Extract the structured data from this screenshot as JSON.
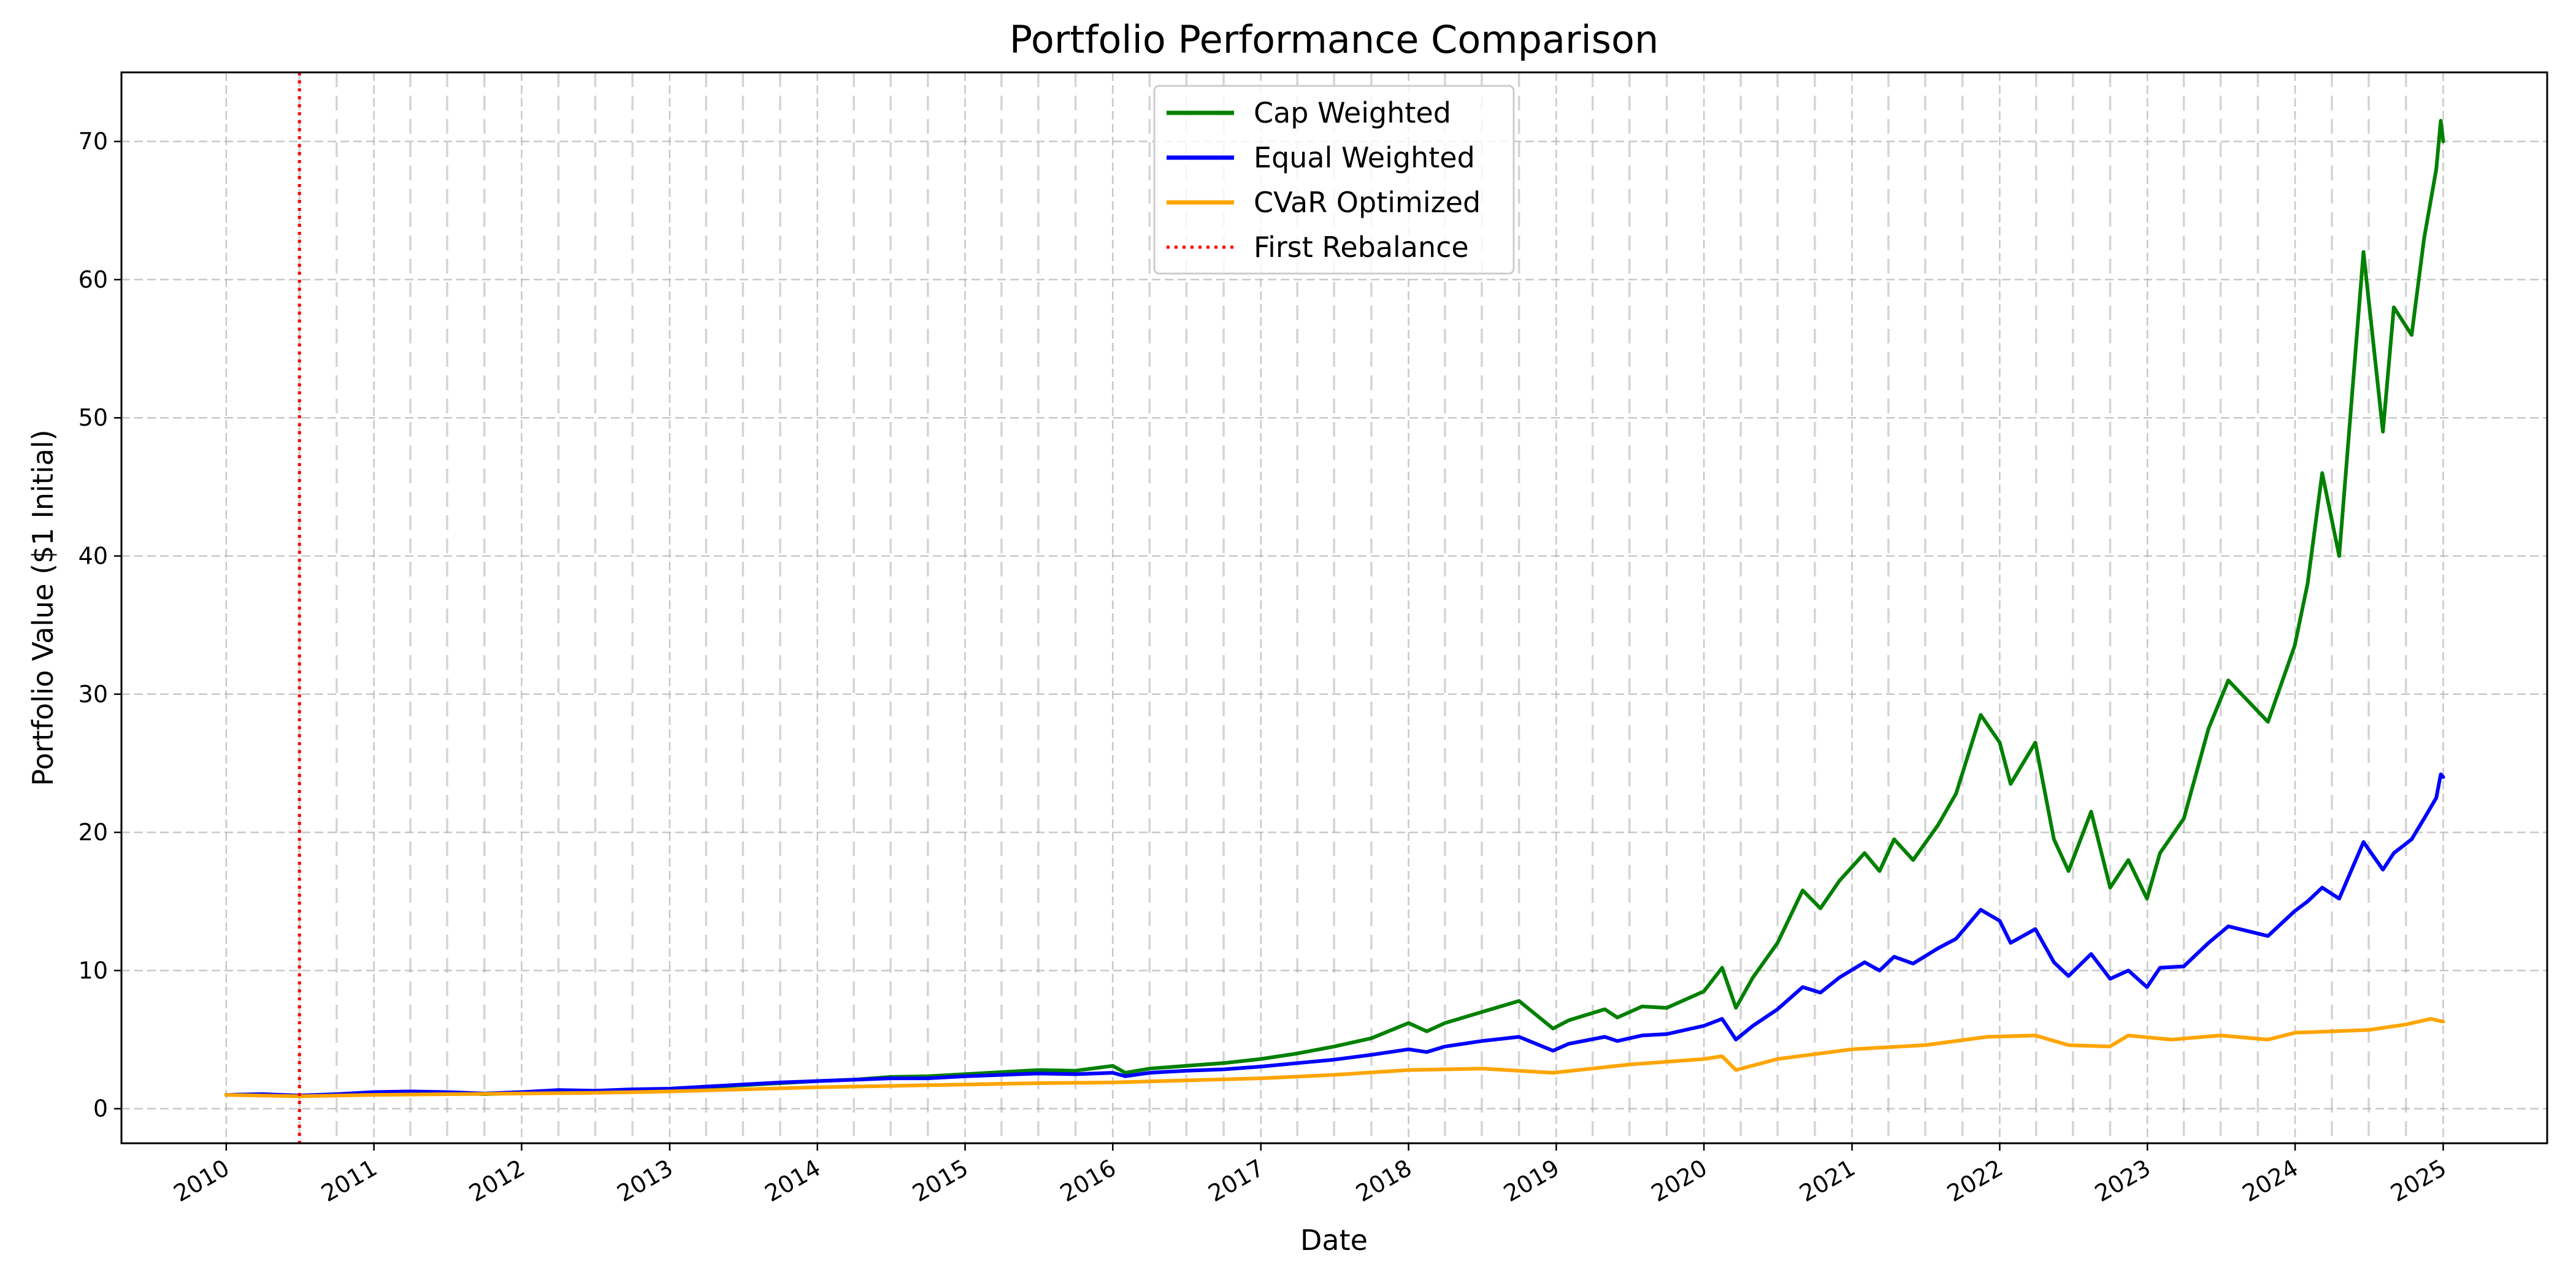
{
  "chart_data": {
    "type": "line",
    "title": "Portfolio Performance Comparison",
    "xlabel": "Date",
    "ylabel": "Portfolio Value ($1 Initial)",
    "x_axis_type": "date",
    "xlim": [
      "2009-04-17",
      "2025-09-15"
    ],
    "ylim": [
      -2.5,
      75
    ],
    "xticks": [
      {
        "date": "2010-01-01",
        "label": "2010"
      },
      {
        "date": "2011-01-01",
        "label": "2011"
      },
      {
        "date": "2012-01-01",
        "label": "2012"
      },
      {
        "date": "2013-01-01",
        "label": "2013"
      },
      {
        "date": "2014-01-01",
        "label": "2014"
      },
      {
        "date": "2015-01-01",
        "label": "2015"
      },
      {
        "date": "2016-01-01",
        "label": "2016"
      },
      {
        "date": "2017-01-01",
        "label": "2017"
      },
      {
        "date": "2018-01-01",
        "label": "2018"
      },
      {
        "date": "2019-01-01",
        "label": "2019"
      },
      {
        "date": "2020-01-01",
        "label": "2020"
      },
      {
        "date": "2021-01-01",
        "label": "2021"
      },
      {
        "date": "2022-01-01",
        "label": "2022"
      },
      {
        "date": "2023-01-01",
        "label": "2023"
      },
      {
        "date": "2024-01-01",
        "label": "2024"
      },
      {
        "date": "2025-01-01",
        "label": "2025"
      }
    ],
    "yticks": [
      0,
      10,
      20,
      30,
      40,
      50,
      60,
      70
    ],
    "grid": true,
    "legend_position": "top-center",
    "rebalance_dates": [
      "2010-07-01",
      "2010-10-01",
      "2011-04-01",
      "2011-07-01",
      "2011-10-01",
      "2012-04-01",
      "2012-07-01",
      "2012-10-01",
      "2013-04-01",
      "2013-07-01",
      "2013-10-01",
      "2014-04-01",
      "2014-07-01",
      "2014-10-01",
      "2015-04-01",
      "2015-07-01",
      "2015-10-01",
      "2016-04-01",
      "2016-07-01",
      "2016-10-01",
      "2017-04-01",
      "2017-07-01",
      "2017-10-01",
      "2018-04-01",
      "2018-07-01",
      "2018-10-01",
      "2019-04-01",
      "2019-07-01",
      "2019-10-01",
      "2020-04-01",
      "2020-07-01",
      "2020-10-01",
      "2021-04-01",
      "2021-07-01",
      "2021-10-01",
      "2022-04-01",
      "2022-07-01",
      "2022-10-01",
      "2023-04-01",
      "2023-07-01",
      "2023-10-01",
      "2024-04-01",
      "2024-07-01",
      "2024-10-01"
    ],
    "first_rebalance": {
      "name": "First Rebalance",
      "date": "2010-07-01",
      "color": "#ff0000"
    },
    "series": [
      {
        "name": "Cap Weighted",
        "color": "#008000",
        "points": [
          [
            "2010-01-01",
            1.0
          ],
          [
            "2010-04-01",
            1.05
          ],
          [
            "2010-07-01",
            0.9
          ],
          [
            "2010-10-01",
            1.0
          ],
          [
            "2011-01-01",
            1.15
          ],
          [
            "2011-04-01",
            1.2
          ],
          [
            "2011-07-01",
            1.15
          ],
          [
            "2011-10-01",
            1.05
          ],
          [
            "2012-01-01",
            1.15
          ],
          [
            "2012-04-01",
            1.3
          ],
          [
            "2012-07-01",
            1.25
          ],
          [
            "2012-10-01",
            1.35
          ],
          [
            "2013-01-01",
            1.4
          ],
          [
            "2013-04-01",
            1.55
          ],
          [
            "2013-07-01",
            1.7
          ],
          [
            "2013-10-01",
            1.85
          ],
          [
            "2014-01-01",
            2.0
          ],
          [
            "2014-04-01",
            2.1
          ],
          [
            "2014-07-01",
            2.3
          ],
          [
            "2014-10-01",
            2.35
          ],
          [
            "2015-01-01",
            2.5
          ],
          [
            "2015-04-01",
            2.65
          ],
          [
            "2015-07-01",
            2.8
          ],
          [
            "2015-10-01",
            2.75
          ],
          [
            "2016-01-01",
            3.1
          ],
          [
            "2016-02-01",
            2.6
          ],
          [
            "2016-04-01",
            2.9
          ],
          [
            "2016-07-01",
            3.1
          ],
          [
            "2016-10-01",
            3.3
          ],
          [
            "2017-01-01",
            3.6
          ],
          [
            "2017-04-01",
            4.0
          ],
          [
            "2017-07-01",
            4.5
          ],
          [
            "2017-10-01",
            5.1
          ],
          [
            "2018-01-01",
            6.2
          ],
          [
            "2018-02-15",
            5.6
          ],
          [
            "2018-04-01",
            6.2
          ],
          [
            "2018-07-01",
            7.0
          ],
          [
            "2018-10-01",
            7.8
          ],
          [
            "2018-12-24",
            5.8
          ],
          [
            "2019-02-01",
            6.4
          ],
          [
            "2019-05-01",
            7.2
          ],
          [
            "2019-06-01",
            6.6
          ],
          [
            "2019-08-01",
            7.4
          ],
          [
            "2019-10-01",
            7.3
          ],
          [
            "2020-01-01",
            8.5
          ],
          [
            "2020-02-15",
            10.2
          ],
          [
            "2020-03-20",
            7.3
          ],
          [
            "2020-05-01",
            9.5
          ],
          [
            "2020-07-01",
            12.0
          ],
          [
            "2020-09-01",
            15.8
          ],
          [
            "2020-10-15",
            14.5
          ],
          [
            "2020-12-01",
            16.5
          ],
          [
            "2021-02-01",
            18.5
          ],
          [
            "2021-03-10",
            17.2
          ],
          [
            "2021-04-15",
            19.5
          ],
          [
            "2021-06-01",
            18.0
          ],
          [
            "2021-08-01",
            20.5
          ],
          [
            "2021-09-15",
            22.8
          ],
          [
            "2021-11-15",
            28.5
          ],
          [
            "2022-01-01",
            26.5
          ],
          [
            "2022-01-28",
            23.5
          ],
          [
            "2022-03-30",
            26.5
          ],
          [
            "2022-05-15",
            19.5
          ],
          [
            "2022-06-20",
            17.2
          ],
          [
            "2022-08-15",
            21.5
          ],
          [
            "2022-10-01",
            16.0
          ],
          [
            "2022-11-15",
            18.0
          ],
          [
            "2022-12-31",
            15.2
          ],
          [
            "2023-02-01",
            18.5
          ],
          [
            "2023-04-01",
            21.0
          ],
          [
            "2023-06-01",
            27.5
          ],
          [
            "2023-07-20",
            31.0
          ],
          [
            "2023-10-26",
            28.0
          ],
          [
            "2023-12-31",
            33.5
          ],
          [
            "2024-02-01",
            38.0
          ],
          [
            "2024-03-08",
            46.0
          ],
          [
            "2024-04-19",
            40.0
          ],
          [
            "2024-06-18",
            62.0
          ],
          [
            "2024-08-05",
            49.0
          ],
          [
            "2024-09-01",
            58.0
          ],
          [
            "2024-10-15",
            56.0
          ],
          [
            "2024-11-15",
            63.0
          ],
          [
            "2024-12-15",
            68.0
          ],
          [
            "2024-12-26",
            71.5
          ],
          [
            "2025-01-01",
            70.0
          ]
        ]
      },
      {
        "name": "Equal Weighted",
        "color": "#0000ff",
        "points": [
          [
            "2010-01-01",
            1.0
          ],
          [
            "2010-04-01",
            1.05
          ],
          [
            "2010-07-01",
            0.95
          ],
          [
            "2010-10-01",
            1.05
          ],
          [
            "2011-01-01",
            1.2
          ],
          [
            "2011-04-01",
            1.25
          ],
          [
            "2011-07-01",
            1.2
          ],
          [
            "2011-10-01",
            1.1
          ],
          [
            "2012-01-01",
            1.2
          ],
          [
            "2012-04-01",
            1.35
          ],
          [
            "2012-07-01",
            1.3
          ],
          [
            "2012-10-01",
            1.4
          ],
          [
            "2013-01-01",
            1.45
          ],
          [
            "2013-04-01",
            1.6
          ],
          [
            "2013-07-01",
            1.75
          ],
          [
            "2013-10-01",
            1.9
          ],
          [
            "2014-01-01",
            2.0
          ],
          [
            "2014-04-01",
            2.1
          ],
          [
            "2014-07-01",
            2.2
          ],
          [
            "2014-10-01",
            2.2
          ],
          [
            "2015-01-01",
            2.35
          ],
          [
            "2015-04-01",
            2.45
          ],
          [
            "2015-07-01",
            2.55
          ],
          [
            "2015-10-01",
            2.5
          ],
          [
            "2016-01-01",
            2.6
          ],
          [
            "2016-02-01",
            2.35
          ],
          [
            "2016-04-01",
            2.6
          ],
          [
            "2016-07-01",
            2.75
          ],
          [
            "2016-10-01",
            2.85
          ],
          [
            "2017-01-01",
            3.05
          ],
          [
            "2017-04-01",
            3.3
          ],
          [
            "2017-07-01",
            3.55
          ],
          [
            "2017-10-01",
            3.9
          ],
          [
            "2018-01-01",
            4.3
          ],
          [
            "2018-02-15",
            4.1
          ],
          [
            "2018-04-01",
            4.5
          ],
          [
            "2018-07-01",
            4.9
          ],
          [
            "2018-10-01",
            5.2
          ],
          [
            "2018-12-24",
            4.2
          ],
          [
            "2019-02-01",
            4.7
          ],
          [
            "2019-05-01",
            5.2
          ],
          [
            "2019-06-01",
            4.9
          ],
          [
            "2019-08-01",
            5.3
          ],
          [
            "2019-10-01",
            5.4
          ],
          [
            "2020-01-01",
            6.0
          ],
          [
            "2020-02-15",
            6.5
          ],
          [
            "2020-03-20",
            5.0
          ],
          [
            "2020-05-01",
            6.0
          ],
          [
            "2020-07-01",
            7.2
          ],
          [
            "2020-09-01",
            8.8
          ],
          [
            "2020-10-15",
            8.4
          ],
          [
            "2020-12-01",
            9.5
          ],
          [
            "2021-02-01",
            10.6
          ],
          [
            "2021-03-10",
            10.0
          ],
          [
            "2021-04-15",
            11.0
          ],
          [
            "2021-06-01",
            10.5
          ],
          [
            "2021-08-01",
            11.6
          ],
          [
            "2021-09-15",
            12.3
          ],
          [
            "2021-11-15",
            14.4
          ],
          [
            "2022-01-01",
            13.6
          ],
          [
            "2022-01-28",
            12.0
          ],
          [
            "2022-03-30",
            13.0
          ],
          [
            "2022-05-15",
            10.6
          ],
          [
            "2022-06-20",
            9.6
          ],
          [
            "2022-08-15",
            11.2
          ],
          [
            "2022-10-01",
            9.4
          ],
          [
            "2022-11-15",
            10.0
          ],
          [
            "2022-12-31",
            8.8
          ],
          [
            "2023-02-01",
            10.2
          ],
          [
            "2023-04-01",
            10.3
          ],
          [
            "2023-06-01",
            12.0
          ],
          [
            "2023-07-20",
            13.2
          ],
          [
            "2023-10-26",
            12.5
          ],
          [
            "2023-12-31",
            14.3
          ],
          [
            "2024-02-01",
            15.0
          ],
          [
            "2024-03-08",
            16.0
          ],
          [
            "2024-04-19",
            15.2
          ],
          [
            "2024-06-18",
            19.3
          ],
          [
            "2024-08-05",
            17.3
          ],
          [
            "2024-09-01",
            18.5
          ],
          [
            "2024-10-15",
            19.5
          ],
          [
            "2024-11-15",
            21.0
          ],
          [
            "2024-12-15",
            22.5
          ],
          [
            "2024-12-26",
            24.2
          ],
          [
            "2025-01-01",
            24.0
          ]
        ]
      },
      {
        "name": "CVaR Optimized",
        "color": "#ffa500",
        "points": [
          [
            "2010-01-01",
            1.0
          ],
          [
            "2010-07-01",
            0.9
          ],
          [
            "2011-01-01",
            1.0
          ],
          [
            "2011-07-01",
            1.05
          ],
          [
            "2012-01-01",
            1.1
          ],
          [
            "2012-07-01",
            1.15
          ],
          [
            "2013-01-01",
            1.25
          ],
          [
            "2013-07-01",
            1.4
          ],
          [
            "2014-01-01",
            1.55
          ],
          [
            "2014-07-01",
            1.65
          ],
          [
            "2015-01-01",
            1.75
          ],
          [
            "2015-07-01",
            1.85
          ],
          [
            "2016-01-01",
            1.9
          ],
          [
            "2016-07-01",
            2.05
          ],
          [
            "2017-01-01",
            2.2
          ],
          [
            "2017-07-01",
            2.45
          ],
          [
            "2018-01-01",
            2.8
          ],
          [
            "2018-07-01",
            2.9
          ],
          [
            "2018-12-24",
            2.6
          ],
          [
            "2019-07-01",
            3.2
          ],
          [
            "2020-01-01",
            3.6
          ],
          [
            "2020-02-15",
            3.8
          ],
          [
            "2020-03-20",
            2.8
          ],
          [
            "2020-07-01",
            3.6
          ],
          [
            "2021-01-01",
            4.3
          ],
          [
            "2021-07-01",
            4.6
          ],
          [
            "2021-12-01",
            5.2
          ],
          [
            "2022-03-30",
            5.3
          ],
          [
            "2022-06-20",
            4.6
          ],
          [
            "2022-09-30",
            4.5
          ],
          [
            "2022-11-15",
            5.3
          ],
          [
            "2023-03-01",
            5.0
          ],
          [
            "2023-07-01",
            5.3
          ],
          [
            "2023-10-26",
            5.0
          ],
          [
            "2024-01-01",
            5.5
          ],
          [
            "2024-07-01",
            5.7
          ],
          [
            "2024-10-01",
            6.1
          ],
          [
            "2024-12-01",
            6.5
          ],
          [
            "2025-01-01",
            6.3
          ]
        ]
      }
    ]
  }
}
